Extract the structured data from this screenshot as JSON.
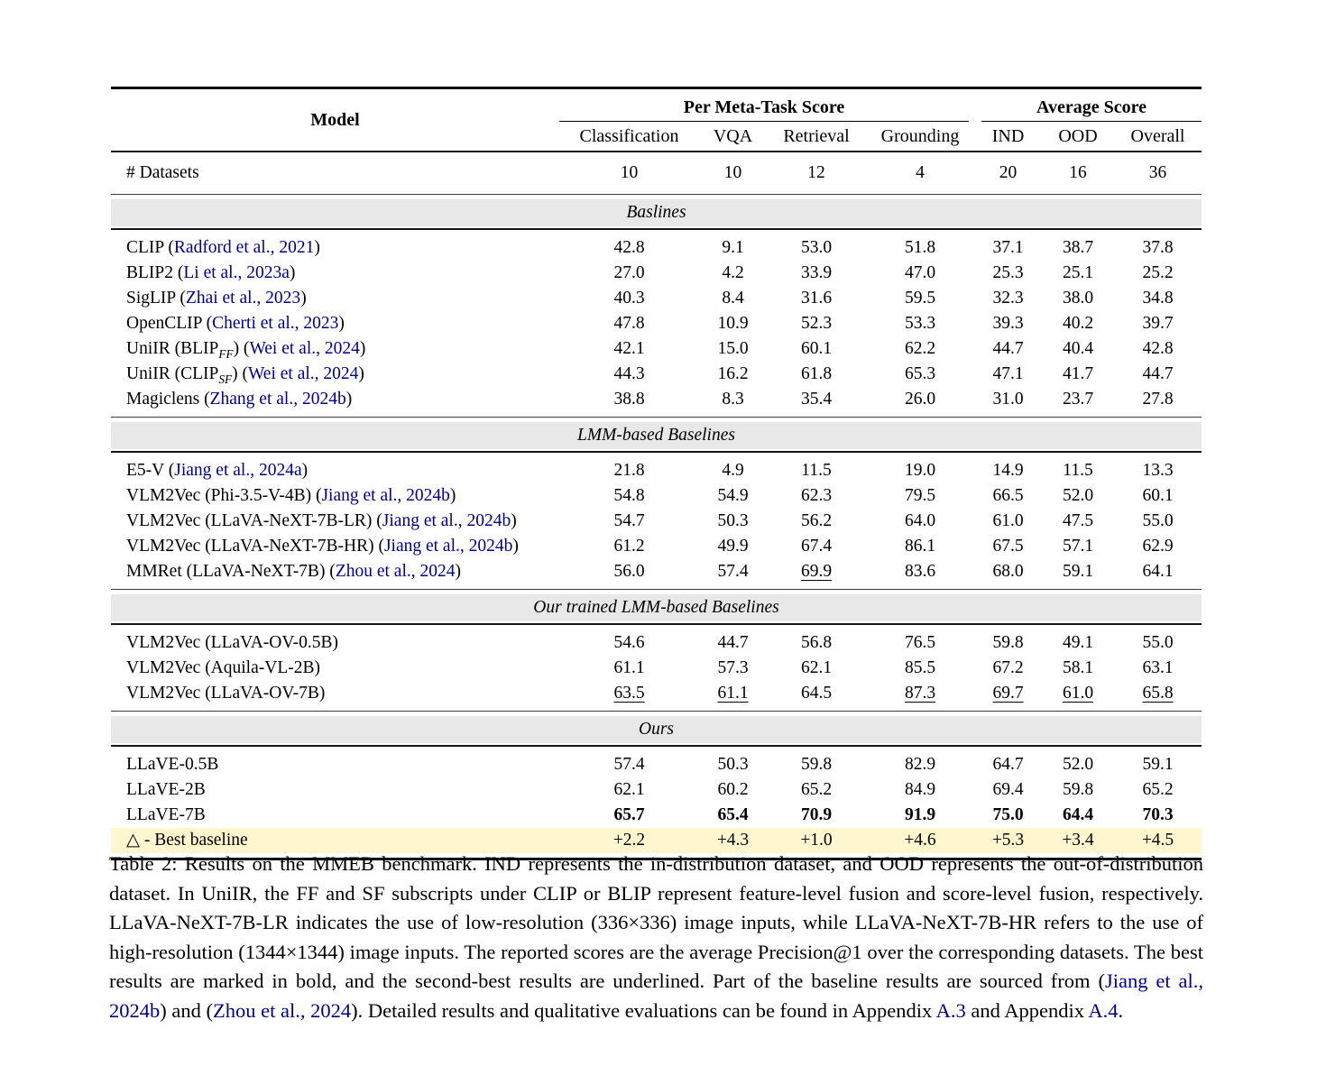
{
  "colors": {
    "link_blue": "#00008b",
    "band_gray": "#e8e8e8",
    "highlight_yellow": "#fdf6ce"
  },
  "table": {
    "header": {
      "model_label": "Model",
      "group1": "Per Meta-Task Score",
      "group2": "Average Score",
      "columns": [
        "Classification",
        "VQA",
        "Retrieval",
        "Grounding",
        "IND",
        "OOD",
        "Overall"
      ]
    },
    "datasets_row": {
      "label": "# Datasets",
      "values": [
        "10",
        "10",
        "12",
        "4",
        "20",
        "16",
        "36"
      ]
    },
    "sections": [
      {
        "title": "Baslines",
        "rows": [
          {
            "model": [
              {
                "t": "CLIP ("
              },
              {
                "t": "Radford et al., 2021",
                "link": true
              },
              {
                "t": ")"
              }
            ],
            "values": [
              "42.8",
              "9.1",
              "53.0",
              "51.8",
              "37.1",
              "38.7",
              "37.8"
            ]
          },
          {
            "model": [
              {
                "t": "BLIP2 ("
              },
              {
                "t": "Li et al., 2023a",
                "link": true
              },
              {
                "t": ")"
              }
            ],
            "values": [
              "27.0",
              "4.2",
              "33.9",
              "47.0",
              "25.3",
              "25.1",
              "25.2"
            ]
          },
          {
            "model": [
              {
                "t": "SigLIP ("
              },
              {
                "t": "Zhai et al., 2023",
                "link": true
              },
              {
                "t": ")"
              }
            ],
            "values": [
              "40.3",
              "8.4",
              "31.6",
              "59.5",
              "32.3",
              "38.0",
              "34.8"
            ]
          },
          {
            "model": [
              {
                "t": "OpenCLIP ("
              },
              {
                "t": "Cherti et al., 2023",
                "link": true
              },
              {
                "t": ")"
              }
            ],
            "values": [
              "47.8",
              "10.9",
              "52.3",
              "53.3",
              "39.3",
              "40.2",
              "39.7"
            ]
          },
          {
            "model": [
              {
                "t": "UniIR (BLIP"
              },
              {
                "t": "FF",
                "sub": true
              },
              {
                "t": ") ("
              },
              {
                "t": "Wei et al., 2024",
                "link": true
              },
              {
                "t": ")"
              }
            ],
            "values": [
              "42.1",
              "15.0",
              "60.1",
              "62.2",
              "44.7",
              "40.4",
              "42.8"
            ]
          },
          {
            "model": [
              {
                "t": "UniIR (CLIP"
              },
              {
                "t": "SF",
                "sub": true
              },
              {
                "t": ") ("
              },
              {
                "t": "Wei et al., 2024",
                "link": true
              },
              {
                "t": ")"
              }
            ],
            "values": [
              "44.3",
              "16.2",
              "61.8",
              "65.3",
              "47.1",
              "41.7",
              "44.7"
            ]
          },
          {
            "model": [
              {
                "t": "Magiclens ("
              },
              {
                "t": "Zhang et al., 2024b",
                "link": true
              },
              {
                "t": ")"
              }
            ],
            "values": [
              "38.8",
              "8.3",
              "35.4",
              "26.0",
              "31.0",
              "23.7",
              "27.8"
            ]
          }
        ]
      },
      {
        "title": "LMM-based Baselines",
        "rows": [
          {
            "model": [
              {
                "t": "E5-V ("
              },
              {
                "t": "Jiang et al., 2024a",
                "link": true
              },
              {
                "t": ")"
              }
            ],
            "values": [
              "21.8",
              "4.9",
              "11.5",
              "19.0",
              "14.9",
              "11.5",
              "13.3"
            ]
          },
          {
            "model": [
              {
                "t": "VLM2Vec (Phi-3.5-V-4B) ("
              },
              {
                "t": "Jiang et al., 2024b",
                "link": true
              },
              {
                "t": ")"
              }
            ],
            "values": [
              "54.8",
              "54.9",
              "62.3",
              "79.5",
              "66.5",
              "52.0",
              "60.1"
            ]
          },
          {
            "model": [
              {
                "t": "VLM2Vec (LLaVA-NeXT-7B-LR) ("
              },
              {
                "t": "Jiang et al., 2024b",
                "link": true
              },
              {
                "t": ")"
              }
            ],
            "values": [
              "54.7",
              "50.3",
              "56.2",
              "64.0",
              "61.0",
              "47.5",
              "55.0"
            ]
          },
          {
            "model": [
              {
                "t": "VLM2Vec (LLaVA-NeXT-7B-HR) ("
              },
              {
                "t": "Jiang et al., 2024b",
                "link": true
              },
              {
                "t": ")"
              }
            ],
            "values": [
              "61.2",
              "49.9",
              "67.4",
              "86.1",
              "67.5",
              "57.1",
              "62.9"
            ]
          },
          {
            "model": [
              {
                "t": "MMRet (LLaVA-NeXT-7B) ("
              },
              {
                "t": "Zhou et al., 2024",
                "link": true
              },
              {
                "t": ")"
              }
            ],
            "values": [
              "56.0",
              "57.4",
              {
                "v": "69.9",
                "u": true
              },
              "83.6",
              "68.0",
              "59.1",
              "64.1"
            ]
          }
        ]
      },
      {
        "title": "Our trained LMM-based Baselines",
        "rows": [
          {
            "model": [
              {
                "t": "VLM2Vec (LLaVA-OV-0.5B)"
              }
            ],
            "values": [
              "54.6",
              "44.7",
              "56.8",
              "76.5",
              "59.8",
              "49.1",
              "55.0"
            ]
          },
          {
            "model": [
              {
                "t": "VLM2Vec (Aquila-VL-2B)"
              }
            ],
            "values": [
              "61.1",
              "57.3",
              "62.1",
              "85.5",
              "67.2",
              "58.1",
              "63.1"
            ]
          },
          {
            "model": [
              {
                "t": "VLM2Vec (LLaVA-OV-7B)"
              }
            ],
            "values": [
              {
                "v": "63.5",
                "u": true
              },
              {
                "v": "61.1",
                "u": true
              },
              "64.5",
              {
                "v": "87.3",
                "u": true
              },
              {
                "v": "69.7",
                "u": true
              },
              {
                "v": "61.0",
                "u": true
              },
              {
                "v": "65.8",
                "u": true
              }
            ]
          }
        ]
      },
      {
        "title": "Ours",
        "rows": [
          {
            "model": [
              {
                "t": "LLaVE-0.5B"
              }
            ],
            "values": [
              "57.4",
              "50.3",
              "59.8",
              "82.9",
              "64.7",
              "52.0",
              "59.1"
            ]
          },
          {
            "model": [
              {
                "t": "LLaVE-2B"
              }
            ],
            "values": [
              "62.1",
              "60.2",
              "65.2",
              "84.9",
              "69.4",
              "59.8",
              "65.2"
            ]
          },
          {
            "model": [
              {
                "t": "LLaVE-7B"
              }
            ],
            "bold": true,
            "values": [
              "65.7",
              "65.4",
              "70.9",
              "91.9",
              "75.0",
              "64.4",
              "70.3"
            ]
          },
          {
            "model": [
              {
                "t": "△ - Best baseline"
              }
            ],
            "highlight": true,
            "values": [
              "+2.2",
              "+4.3",
              "+1.0",
              "+4.6",
              "+5.3",
              "+3.4",
              "+4.5"
            ]
          }
        ]
      }
    ]
  },
  "caption": {
    "segments": [
      {
        "t": "Table 2: Results on the MMEB benchmark. IND represents the in-distribution dataset, and OOD represents the out-of-distribution dataset. In UniIR, the FF and SF subscripts under CLIP or BLIP represent feature-level fusion and score-level fusion, respectively. LLaVA-NeXT-7B-LR indicates the use of low-resolution (336×336) image inputs, while LLaVA-NeXT-7B-HR refers to the use of high-resolution (1344×1344) image inputs. The reported scores are the average Precision@1 over the corresponding datasets. The best results are marked in bold, and the second-best results are underlined. Part of the baseline results are sourced from ("
      },
      {
        "t": "Jiang et al., 2024b",
        "link": true
      },
      {
        "t": ") and ("
      },
      {
        "t": "Zhou et al., 2024",
        "link": true
      },
      {
        "t": "). Detailed results and qualitative evaluations can be found in Appendix "
      },
      {
        "t": "A.3",
        "link": true
      },
      {
        "t": " and Appendix "
      },
      {
        "t": "A.4",
        "link": true
      },
      {
        "t": "."
      }
    ]
  }
}
